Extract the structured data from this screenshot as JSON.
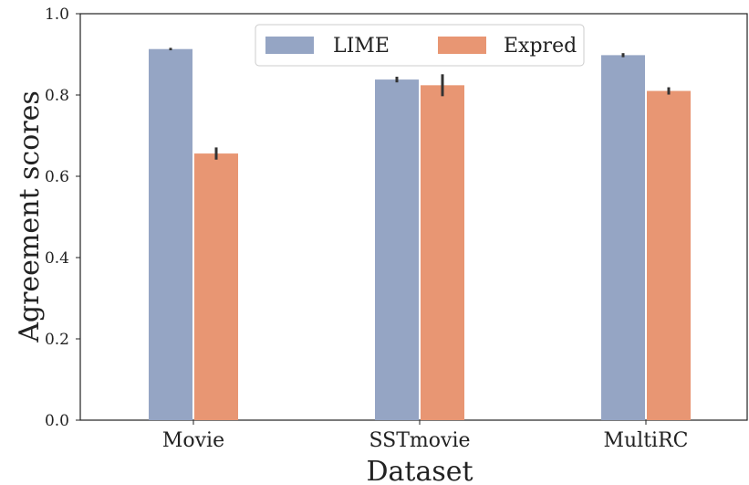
{
  "chart_data": {
    "type": "bar",
    "xlabel": "Dataset",
    "ylabel": "Agreement scores",
    "categories": [
      "Movie",
      "SSTmovie",
      "MultiRC"
    ],
    "series": [
      {
        "name": "LIME",
        "color": "#95a5c4",
        "values": [
          0.913,
          0.838,
          0.898
        ],
        "err": [
          0.003,
          0.007,
          0.005
        ]
      },
      {
        "name": "Expred",
        "color": "#e89673",
        "values": [
          0.656,
          0.824,
          0.81
        ],
        "err": [
          0.015,
          0.027,
          0.009
        ]
      }
    ],
    "ylim": [
      0.0,
      1.0
    ],
    "yticks": [
      "0.0",
      "0.2",
      "0.4",
      "0.6",
      "0.8",
      "1.0"
    ],
    "grid": false,
    "error_bars": true,
    "legend_position": "top-center"
  }
}
